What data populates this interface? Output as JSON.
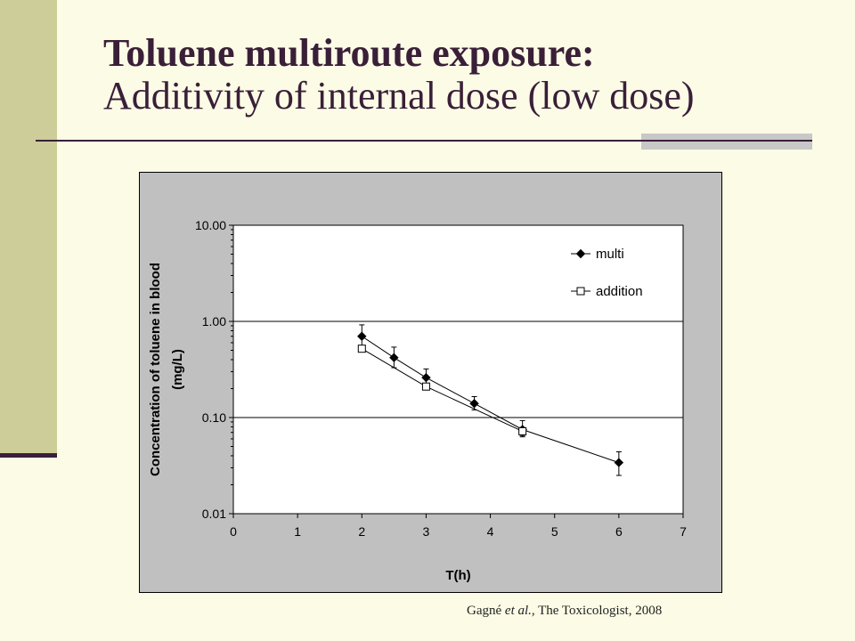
{
  "slide": {
    "title_bold": "Toluene multiroute exposure:",
    "title_regular": "Additivity of internal dose (low dose)",
    "citation_author": "Gagné ",
    "citation_etal": "et al.",
    "citation_rest": ", The Toxicologist, 2008"
  },
  "colors": {
    "background": "#fbfbe6",
    "sidebar": "#cdcd9a",
    "title_text": "#3a1f38",
    "chart_panel": "#c0c0c0",
    "plot_area": "#ffffff"
  },
  "chart_data": {
    "type": "line",
    "ylabel_line1": "Concentration of toluene in blood",
    "ylabel_line2": "(mg/L)",
    "xlabel": "T(h)",
    "xlim": [
      0,
      7
    ],
    "ylim": [
      0.01,
      10
    ],
    "yscale": "log",
    "x_ticks": [
      "0",
      "1",
      "2",
      "3",
      "4",
      "5",
      "6",
      "7"
    ],
    "y_ticks": [
      {
        "value": 10,
        "label": "10.00"
      },
      {
        "value": 1,
        "label": "1.00"
      },
      {
        "value": 0.1,
        "label": "0.10"
      },
      {
        "value": 0.01,
        "label": "0.01"
      }
    ],
    "grid": "horizontal major lines",
    "legend_position": "top-right",
    "series": [
      {
        "name": "multi",
        "marker": "filled-diamond",
        "x": [
          2,
          2.5,
          3,
          3.75,
          4.5,
          6
        ],
        "y": [
          0.7,
          0.42,
          0.26,
          0.14,
          0.075,
          0.034
        ],
        "y_err_low": [
          0.55,
          0.33,
          0.22,
          0.12,
          0.063,
          0.025
        ],
        "y_err_high": [
          0.92,
          0.54,
          0.32,
          0.165,
          0.093,
          0.044
        ]
      },
      {
        "name": "addition",
        "marker": "open-square",
        "x": [
          2,
          3,
          4.5
        ],
        "y": [
          0.52,
          0.21,
          0.072
        ],
        "y_err_low": [
          0.5,
          0.2,
          0.065
        ],
        "y_err_high": [
          0.55,
          0.22,
          0.079
        ]
      }
    ]
  }
}
